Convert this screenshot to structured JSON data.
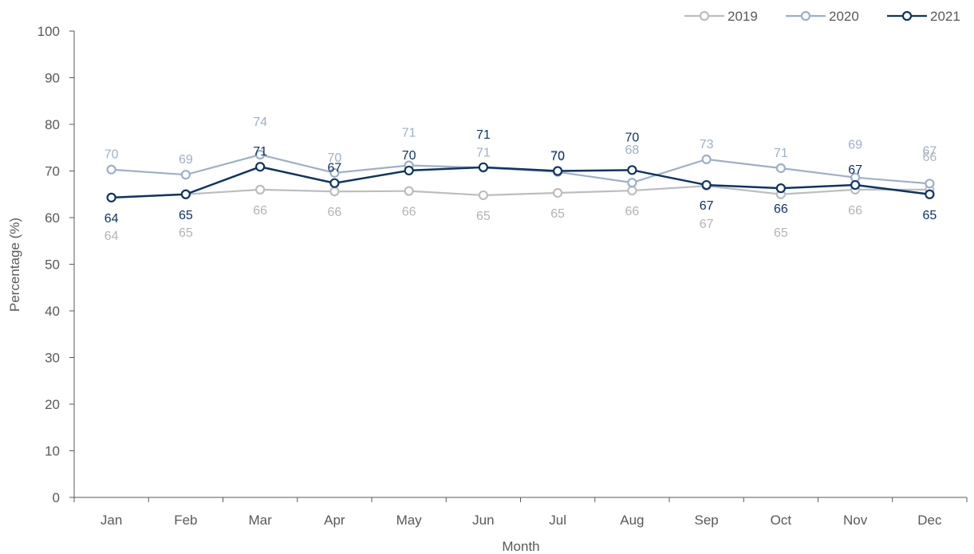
{
  "chart_data": {
    "type": "line",
    "xlabel": "Month",
    "ylabel": "Percentage (%)",
    "ylim": [
      0,
      100
    ],
    "yticks": [
      0,
      10,
      20,
      30,
      40,
      50,
      60,
      70,
      80,
      90,
      100
    ],
    "grid": false,
    "legend_position": "top-right",
    "categories": [
      "Jan",
      "Feb",
      "Mar",
      "Apr",
      "May",
      "Jun",
      "Jul",
      "Aug",
      "Sep",
      "Oct",
      "Nov",
      "Dec"
    ],
    "series": [
      {
        "name": "2019",
        "color": "#bdbdbd",
        "label_color": "#b3b3b3",
        "values": [
          64.3,
          65.0,
          66.0,
          65.6,
          65.7,
          64.8,
          65.3,
          65.8,
          66.8,
          65.0,
          66.0,
          66.0
        ],
        "labels": [
          "64",
          "65",
          "66",
          "66",
          "66",
          "65",
          "65",
          "66",
          "67",
          "65",
          "66",
          "66"
        ],
        "label_pos": [
          "below2",
          "below2",
          "below",
          "below",
          "below",
          "below",
          "below",
          "below",
          "below2",
          "below2",
          "below",
          "above2"
        ]
      },
      {
        "name": "2020",
        "color": "#9db0c7",
        "label_color": "#9db0c7",
        "values": [
          70.3,
          69.2,
          73.5,
          69.6,
          71.2,
          70.7,
          69.8,
          67.5,
          72.5,
          70.6,
          68.6,
          67.3
        ],
        "labels": [
          "70",
          "69",
          "74",
          "70",
          "71",
          "71",
          "70",
          "68",
          "73",
          "71",
          "69",
          "67"
        ],
        "label_pos": [
          "above",
          "above",
          "above2",
          "above",
          "above2",
          "above",
          "above",
          "above2",
          "above",
          "above",
          "above2",
          "above2"
        ]
      },
      {
        "name": "2021",
        "color": "#0d3466",
        "label_color": "#0d3466",
        "values": [
          64.3,
          65.0,
          70.9,
          67.4,
          70.1,
          70.8,
          70.0,
          70.2,
          67.0,
          66.3,
          67.0,
          65.0
        ],
        "labels": [
          "64",
          "65",
          "71",
          "67",
          "70",
          "71",
          "70",
          "70",
          "67",
          "66",
          "67",
          "65"
        ],
        "label_pos": [
          "below",
          "below",
          "above",
          "above",
          "above",
          "above2",
          "above",
          "above2",
          "below",
          "below",
          "above",
          "below"
        ]
      }
    ]
  }
}
